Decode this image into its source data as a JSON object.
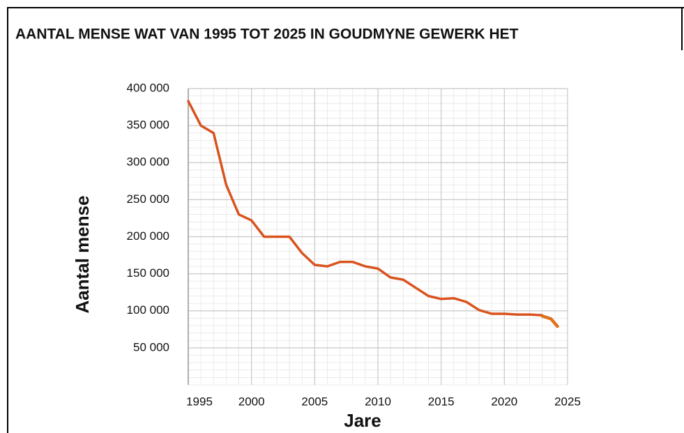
{
  "chart_data": {
    "type": "line",
    "title": "AANTAL MENSE WAT VAN 1995 TOT 2025 IN GOUDMYNE GEWERK HET",
    "xlabel": "Jare",
    "ylabel": "Aantal mense",
    "xlim": [
      1995,
      2025
    ],
    "xticks": [
      1995,
      2000,
      2005,
      2010,
      2015,
      2020,
      2025
    ],
    "ylim": [
      0,
      400000
    ],
    "yticks": [
      {
        "value": 50000,
        "label": "50 000"
      },
      {
        "value": 100000,
        "label": "100 000"
      },
      {
        "value": 150000,
        "label": "150 000"
      },
      {
        "value": 200000,
        "label": "200 000"
      },
      {
        "value": 250000,
        "label": "250 000"
      },
      {
        "value": 300000,
        "label": "300 000"
      },
      {
        "value": 350000,
        "label": "350 000"
      },
      {
        "value": 400000,
        "label": "400 000"
      }
    ],
    "grid": true,
    "series": [
      {
        "color": "#d9531e",
        "x": [
          1995,
          1996,
          1997,
          1998,
          1999,
          2000,
          2001,
          2002,
          2003,
          2004,
          2005,
          2006,
          2007,
          2008,
          2009,
          2010,
          2011,
          2012,
          2013,
          2014,
          2015,
          2016,
          2017,
          2018,
          2019,
          2020,
          2021,
          2022,
          2023
        ],
        "values": [
          383000,
          350000,
          340000,
          270000,
          230000,
          222000,
          200000,
          200000,
          200000,
          178000,
          162000,
          160000,
          166000,
          166000,
          160000,
          157000,
          145000,
          142000,
          131000,
          120000,
          116000,
          117000,
          112000,
          101000,
          96000,
          96000,
          95000,
          95000,
          94000
        ]
      },
      {
        "color": "#e0701a",
        "x": [
          2023,
          2023.7,
          2024.2
        ],
        "values": [
          93000,
          89000,
          79000
        ]
      }
    ]
  }
}
